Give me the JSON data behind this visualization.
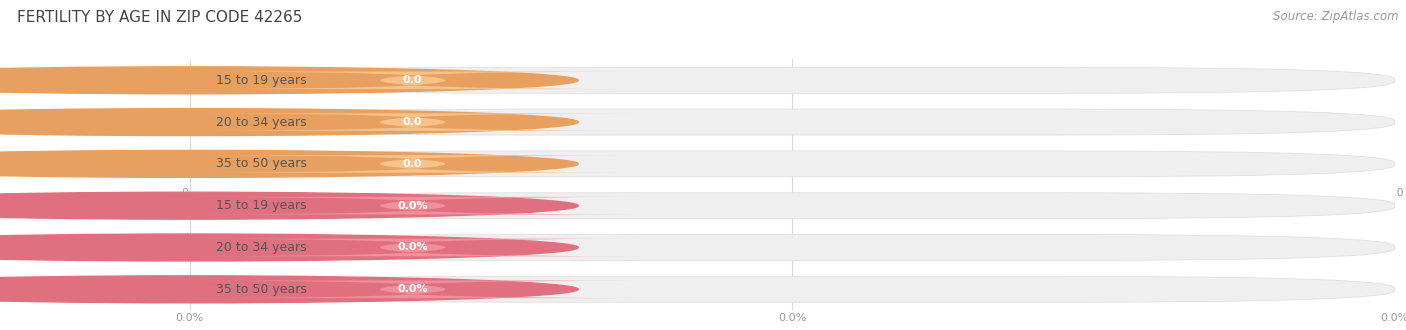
{
  "title": "FERTILITY BY AGE IN ZIP CODE 42265",
  "source_text": "Source: ZipAtlas.com",
  "group1_labels": [
    "15 to 19 years",
    "20 to 34 years",
    "35 to 50 years"
  ],
  "group2_labels": [
    "15 to 19 years",
    "20 to 34 years",
    "35 to 50 years"
  ],
  "group1_value_labels": [
    "0.0",
    "0.0",
    "0.0"
  ],
  "group2_value_labels": [
    "0.0%",
    "0.0%",
    "0.0%"
  ],
  "group1_bar_color": "#F5C28A",
  "group1_circle_color": "#E8A060",
  "group2_bar_color": "#F09098",
  "group2_circle_color": "#E07080",
  "bar_bg_color": "#EFEFEF",
  "bar_edge_color": "#E0E0E0",
  "grid_color": "#D8D8D8",
  "axis_tick_color": "#999999",
  "title_color": "#444444",
  "label_text_color": "#555555",
  "value_text_color": "#FFFFFF",
  "source_color": "#999999",
  "background_color": "#FFFFFF",
  "title_fontsize": 11,
  "label_fontsize": 9,
  "value_fontsize": 8,
  "source_fontsize": 8.5,
  "tick_fontsize": 8
}
